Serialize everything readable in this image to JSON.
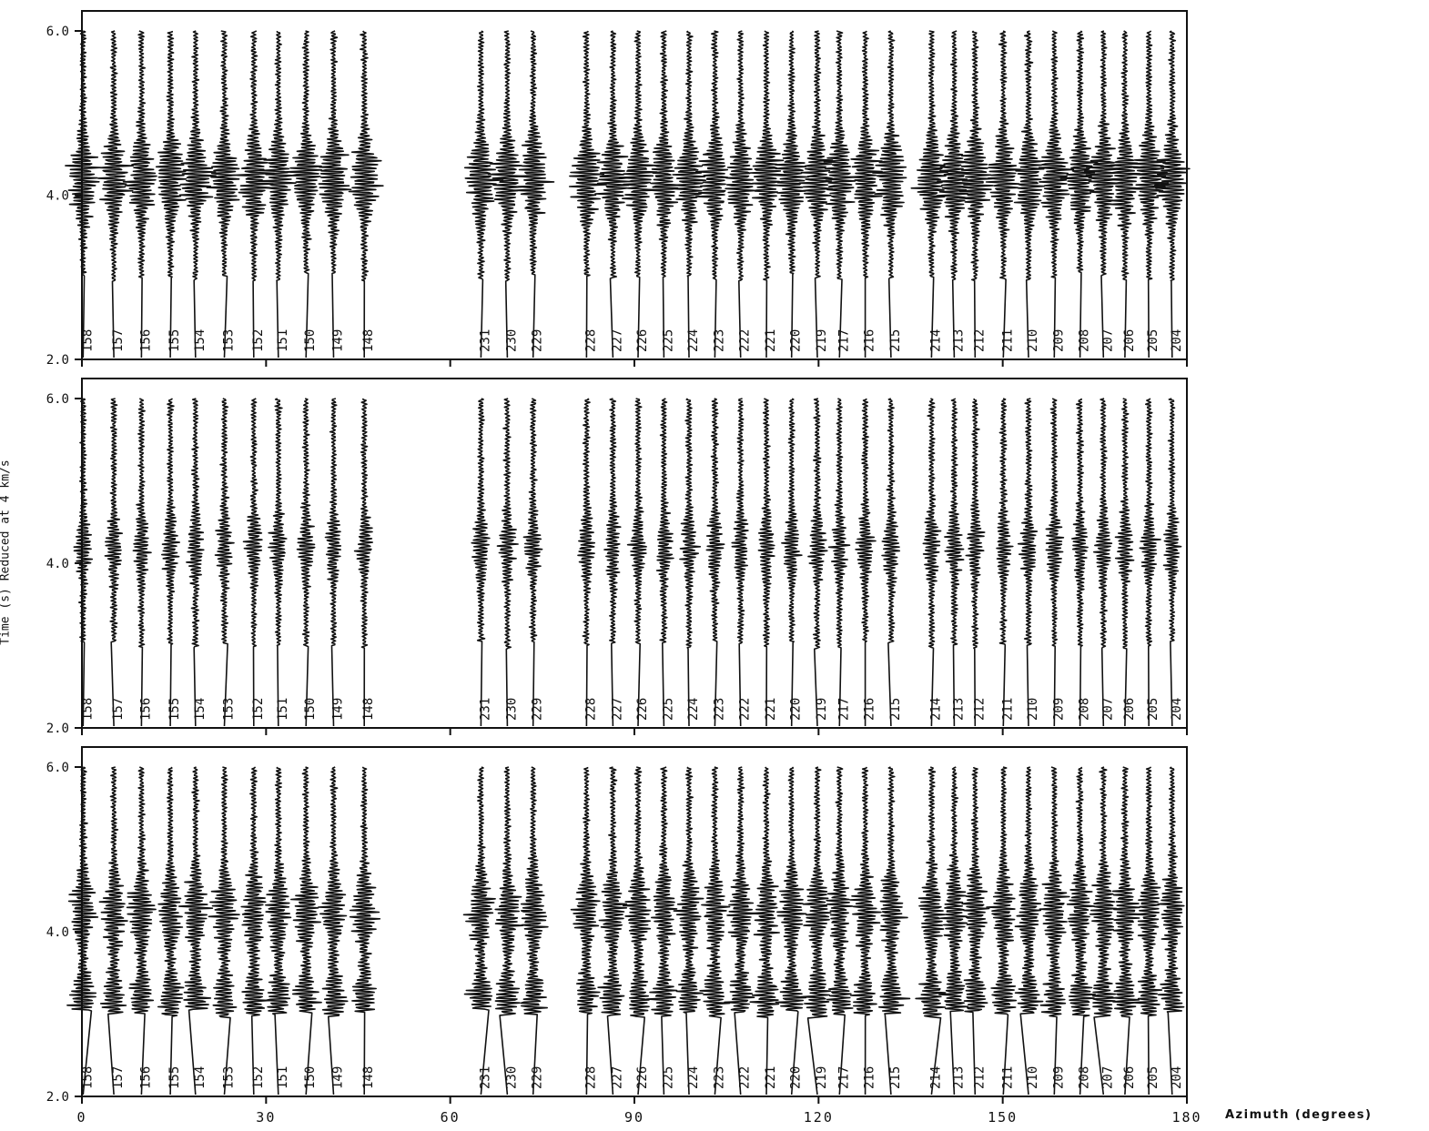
{
  "chart_data": {
    "type": "line",
    "title": "",
    "xlabel": "Azimuth (degrees)",
    "ylabel": "Time (s) Reduced at 4 km/s",
    "xlim": [
      0,
      180
    ],
    "ylim": [
      2.0,
      6.0
    ],
    "x_ticks": [
      "0",
      "30",
      "60",
      "90",
      "120",
      "150",
      "180"
    ],
    "y_ticks": [
      "2.0",
      "4.0",
      "6.0"
    ],
    "panels": [
      {
        "traces": [
          {
            "label": "158",
            "azimuth": 0.2
          },
          {
            "label": "157",
            "azimuth": 5.2
          },
          {
            "label": "156",
            "azimuth": 9.7
          },
          {
            "label": "155",
            "azimuth": 14.4
          },
          {
            "label": "154",
            "azimuth": 18.5
          },
          {
            "label": "153",
            "azimuth": 23.2
          },
          {
            "label": "152",
            "azimuth": 28.0
          },
          {
            "label": "151",
            "azimuth": 32.0
          },
          {
            "label": "150",
            "azimuth": 36.5
          },
          {
            "label": "149",
            "azimuth": 41.0
          },
          {
            "label": "148",
            "azimuth": 46.0
          },
          {
            "label": "231",
            "azimuth": 65.0
          },
          {
            "label": "230",
            "azimuth": 69.3
          },
          {
            "label": "229",
            "azimuth": 73.5
          },
          {
            "label": "228",
            "azimuth": 82.2
          },
          {
            "label": "227",
            "azimuth": 86.5
          },
          {
            "label": "226",
            "azimuth": 90.6
          },
          {
            "label": "225",
            "azimuth": 94.8
          },
          {
            "label": "224",
            "azimuth": 98.9
          },
          {
            "label": "223",
            "azimuth": 103.1
          },
          {
            "label": "222",
            "azimuth": 107.3
          },
          {
            "label": "221",
            "azimuth": 111.5
          },
          {
            "label": "220",
            "azimuth": 115.6
          },
          {
            "label": "219",
            "azimuth": 119.8
          },
          {
            "label": "217",
            "azimuth": 123.4
          },
          {
            "label": "216",
            "azimuth": 127.6
          },
          {
            "label": "215",
            "azimuth": 131.8
          },
          {
            "label": "214",
            "azimuth": 138.4
          },
          {
            "label": "213",
            "azimuth": 142.1
          },
          {
            "label": "212",
            "azimuth": 145.5
          },
          {
            "label": "211",
            "azimuth": 150.1
          },
          {
            "label": "210",
            "azimuth": 154.2
          },
          {
            "label": "209",
            "azimuth": 158.4
          },
          {
            "label": "208",
            "azimuth": 162.6
          },
          {
            "label": "207",
            "azimuth": 166.4
          },
          {
            "label": "206",
            "azimuth": 169.9
          },
          {
            "label": "205",
            "azimuth": 173.8
          },
          {
            "label": "204",
            "azimuth": 177.6
          }
        ],
        "energy_bands": [
          {
            "t": 4.2,
            "width": 0.6
          }
        ],
        "emphasis": "high"
      },
      {
        "traces": [
          {
            "label": "158",
            "azimuth": 0.2
          },
          {
            "label": "157",
            "azimuth": 5.2
          },
          {
            "label": "156",
            "azimuth": 9.7
          },
          {
            "label": "155",
            "azimuth": 14.4
          },
          {
            "label": "154",
            "azimuth": 18.5
          },
          {
            "label": "153",
            "azimuth": 23.2
          },
          {
            "label": "152",
            "azimuth": 28.0
          },
          {
            "label": "151",
            "azimuth": 32.0
          },
          {
            "label": "150",
            "azimuth": 36.5
          },
          {
            "label": "149",
            "azimuth": 41.0
          },
          {
            "label": "148",
            "azimuth": 46.0
          },
          {
            "label": "231",
            "azimuth": 65.0
          },
          {
            "label": "230",
            "azimuth": 69.3
          },
          {
            "label": "229",
            "azimuth": 73.5
          },
          {
            "label": "228",
            "azimuth": 82.2
          },
          {
            "label": "227",
            "azimuth": 86.5
          },
          {
            "label": "226",
            "azimuth": 90.6
          },
          {
            "label": "225",
            "azimuth": 94.8
          },
          {
            "label": "224",
            "azimuth": 98.9
          },
          {
            "label": "223",
            "azimuth": 103.1
          },
          {
            "label": "222",
            "azimuth": 107.3
          },
          {
            "label": "221",
            "azimuth": 111.5
          },
          {
            "label": "220",
            "azimuth": 115.6
          },
          {
            "label": "219",
            "azimuth": 119.8
          },
          {
            "label": "217",
            "azimuth": 123.4
          },
          {
            "label": "216",
            "azimuth": 127.6
          },
          {
            "label": "215",
            "azimuth": 131.8
          },
          {
            "label": "214",
            "azimuth": 138.4
          },
          {
            "label": "213",
            "azimuth": 142.1
          },
          {
            "label": "212",
            "azimuth": 145.5
          },
          {
            "label": "211",
            "azimuth": 150.1
          },
          {
            "label": "210",
            "azimuth": 154.2
          },
          {
            "label": "209",
            "azimuth": 158.4
          },
          {
            "label": "208",
            "azimuth": 162.6
          },
          {
            "label": "207",
            "azimuth": 166.4
          },
          {
            "label": "206",
            "azimuth": 169.9
          },
          {
            "label": "205",
            "azimuth": 173.8
          },
          {
            "label": "204",
            "azimuth": 177.6
          }
        ],
        "energy_bands": [
          {
            "t": 4.2,
            "width": 0.5
          }
        ],
        "emphasis": "low"
      },
      {
        "traces": [
          {
            "label": "158",
            "azimuth": 0.2
          },
          {
            "label": "157",
            "azimuth": 5.2
          },
          {
            "label": "156",
            "azimuth": 9.7
          },
          {
            "label": "155",
            "azimuth": 14.4
          },
          {
            "label": "154",
            "azimuth": 18.5
          },
          {
            "label": "153",
            "azimuth": 23.2
          },
          {
            "label": "152",
            "azimuth": 28.0
          },
          {
            "label": "151",
            "azimuth": 32.0
          },
          {
            "label": "150",
            "azimuth": 36.5
          },
          {
            "label": "149",
            "azimuth": 41.0
          },
          {
            "label": "148",
            "azimuth": 46.0
          },
          {
            "label": "231",
            "azimuth": 65.0
          },
          {
            "label": "230",
            "azimuth": 69.3
          },
          {
            "label": "229",
            "azimuth": 73.5
          },
          {
            "label": "228",
            "azimuth": 82.2
          },
          {
            "label": "227",
            "azimuth": 86.5
          },
          {
            "label": "226",
            "azimuth": 90.6
          },
          {
            "label": "225",
            "azimuth": 94.8
          },
          {
            "label": "224",
            "azimuth": 98.9
          },
          {
            "label": "223",
            "azimuth": 103.1
          },
          {
            "label": "222",
            "azimuth": 107.3
          },
          {
            "label": "221",
            "azimuth": 111.5
          },
          {
            "label": "220",
            "azimuth": 115.6
          },
          {
            "label": "219",
            "azimuth": 119.8
          },
          {
            "label": "217",
            "azimuth": 123.4
          },
          {
            "label": "216",
            "azimuth": 127.6
          },
          {
            "label": "215",
            "azimuth": 131.8
          },
          {
            "label": "214",
            "azimuth": 138.4
          },
          {
            "label": "213",
            "azimuth": 142.1
          },
          {
            "label": "212",
            "azimuth": 145.5
          },
          {
            "label": "211",
            "azimuth": 150.1
          },
          {
            "label": "210",
            "azimuth": 154.2
          },
          {
            "label": "209",
            "azimuth": 158.4
          },
          {
            "label": "208",
            "azimuth": 162.6
          },
          {
            "label": "207",
            "azimuth": 166.4
          },
          {
            "label": "206",
            "azimuth": 169.9
          },
          {
            "label": "205",
            "azimuth": 173.8
          },
          {
            "label": "204",
            "azimuth": 177.6
          }
        ],
        "energy_bands": [
          {
            "t": 4.25,
            "width": 0.6
          },
          {
            "t": 3.2,
            "width": 0.4
          }
        ],
        "emphasis": "medium"
      }
    ],
    "grid": false,
    "legend": "none",
    "trace_color": "#111111"
  }
}
